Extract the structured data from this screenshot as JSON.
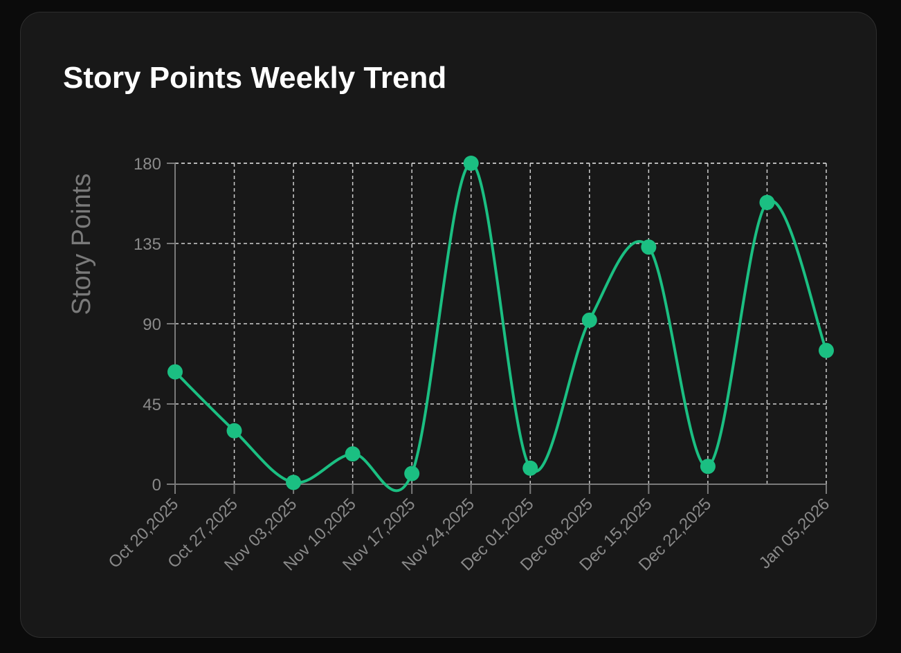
{
  "card": {
    "title": "Story Points Weekly Trend"
  },
  "colors": {
    "background": "#0b0b0b",
    "card": "#181818",
    "series": "#1bbf82",
    "grid": "#cfcfcf",
    "tick_label": "#8a8a8a"
  },
  "chart_data": {
    "type": "line",
    "title": "Story Points Weekly Trend",
    "xlabel": "",
    "ylabel": "Story Points",
    "ylim": [
      0,
      180
    ],
    "yticks": [
      0,
      45,
      90,
      135,
      180
    ],
    "grid": true,
    "smooth": true,
    "x_tick_labels": [
      "Oct 20,2025",
      "Oct 27,2025",
      "Nov 03,2025",
      "Nov 10,2025",
      "Nov 17,2025",
      "Nov 24,2025",
      "Dec 01,2025",
      "Dec 08,2025",
      "Dec 15,2025",
      "Dec 22,2025",
      "Jan 05,2026"
    ],
    "x": [
      "2025-10-20",
      "2025-10-27",
      "2025-11-03",
      "2025-11-10",
      "2025-11-17",
      "2025-11-24",
      "2025-12-01",
      "2025-12-08",
      "2025-12-15",
      "2025-12-22",
      "2025-12-29",
      "2026-01-05"
    ],
    "series": [
      {
        "values": [
          63,
          30,
          1,
          17,
          6,
          180,
          9,
          92,
          133,
          10,
          158,
          75
        ]
      }
    ]
  }
}
